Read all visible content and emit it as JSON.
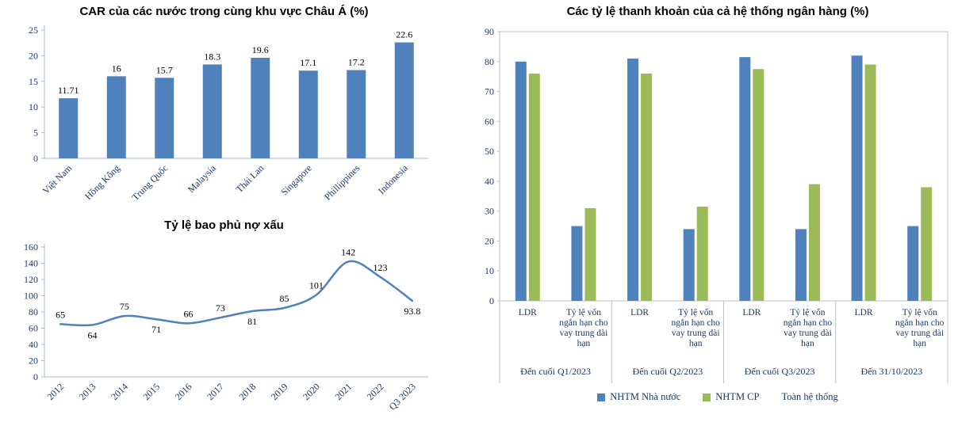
{
  "page": {
    "background": "#ffffff"
  },
  "chart_data": [
    {
      "id": "car",
      "type": "bar",
      "title": "CAR của các nước trong cùng khu vực Châu Á (%)",
      "categories": [
        "Việt Nam",
        "Hồng Kông",
        "Trung Quốc",
        "Malaysia",
        "Thái Lan",
        "Singapore",
        "Phillippines",
        "Indonesia"
      ],
      "values": [
        11.71,
        16,
        15.7,
        18.3,
        19.6,
        17.1,
        17.2,
        22.6
      ],
      "value_labels": [
        "11.71",
        "16",
        "15.7",
        "18.3",
        "19.6",
        "17.1",
        "17.2",
        "22.6"
      ],
      "ylim": [
        0,
        25
      ],
      "yticks": [
        0,
        5,
        10,
        15,
        20,
        25
      ],
      "bar_color": "#4f81bd",
      "grid": false,
      "legend_position": "none"
    },
    {
      "id": "coverage",
      "type": "line",
      "title": "Tỷ lệ bao phủ nợ xấu",
      "categories": [
        "2012",
        "2013",
        "2014",
        "2015",
        "2016",
        "2017",
        "2018",
        "2019",
        "2020",
        "2021",
        "2022",
        "Q3 2023"
      ],
      "values": [
        65,
        64,
        75,
        71,
        66,
        73,
        81,
        85,
        101,
        142,
        123,
        93.8
      ],
      "value_labels": [
        "65",
        "64",
        "75",
        "71",
        "66",
        "73",
        "81",
        "85",
        "101",
        "142",
        "123",
        "93.8"
      ],
      "label_positions": [
        "above",
        "below",
        "above",
        "below",
        "above",
        "above",
        "below",
        "above",
        "above",
        "above",
        "above",
        "below"
      ],
      "ylim": [
        0,
        160
      ],
      "yticks": [
        0,
        20,
        40,
        60,
        80,
        100,
        120,
        140,
        160
      ],
      "line_color": "#4f81bd",
      "grid": false,
      "legend_position": "none"
    },
    {
      "id": "liquidity",
      "type": "grouped-bar",
      "title": "Các tỷ lệ thanh khoản của cả hệ thống ngân hàng (%)",
      "groups": [
        "Đến cuối Q1/2023",
        "Đến cuối Q2/2023",
        "Đến cuối Q3/2023",
        "Đến 31/10/2023"
      ],
      "subcategories": [
        "LDR",
        "Tỷ lệ vốn ngắn hạn cho vay trung dài hạn"
      ],
      "series": [
        {
          "name": "NHTM Nhà nước",
          "color": "#4f81bd",
          "values": [
            80,
            25,
            81,
            24,
            81.5,
            24,
            82,
            25
          ]
        },
        {
          "name": "NHTM CP",
          "color": "#9bbb59",
          "values": [
            76,
            31,
            76,
            31.5,
            77.5,
            39,
            79,
            38
          ]
        }
      ],
      "legend": [
        {
          "label": "NHTM Nhà nước",
          "color": "#4f81bd"
        },
        {
          "label": "NHTM CP",
          "color": "#9bbb59"
        },
        {
          "label": "Toàn hệ thống",
          "color": null
        }
      ],
      "ylim": [
        0,
        90
      ],
      "yticks": [
        0,
        10,
        20,
        30,
        40,
        50,
        60,
        70,
        80,
        90
      ],
      "grid": false,
      "legend_position": "bottom"
    }
  ]
}
